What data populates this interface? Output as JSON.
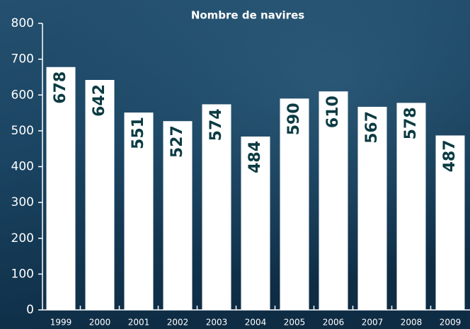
{
  "chart_data": {
    "type": "bar",
    "title": "Nombre de navires",
    "categories": [
      "1999",
      "2000",
      "2001",
      "2002",
      "2003",
      "2004",
      "2005",
      "2006",
      "2007",
      "2008",
      "2009"
    ],
    "values": [
      678,
      642,
      551,
      527,
      574,
      484,
      590,
      610,
      567,
      578,
      487
    ],
    "color": "#ffffff",
    "label_color": "#0c3b42",
    "ylim": [
      0,
      800
    ],
    "yticks": [
      0,
      100,
      200,
      300,
      400,
      500,
      600,
      700,
      800
    ],
    "grid": false
  }
}
